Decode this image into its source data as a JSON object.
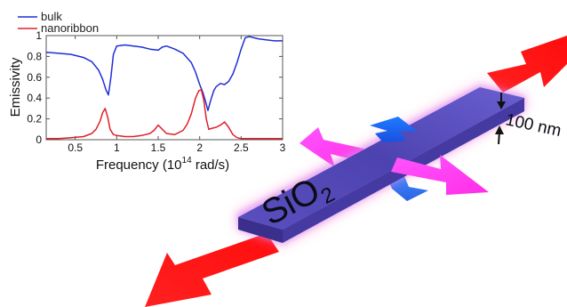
{
  "figure": {
    "material_label": "SiO",
    "material_subscript": "2",
    "thickness_label": "100 nm",
    "colors": {
      "ribbon": "#4f45b5",
      "ribbon_glow": "#ff7ad0",
      "red_arrow": "#ff1a1a",
      "magenta_arrow": "#ff3dff",
      "blue_arrow": "#1f6bff"
    }
  },
  "chart_data": {
    "type": "line",
    "xlabel": "Frequency (10",
    "xlabel_sup": "14",
    "xlabel_tail": " rad/s)",
    "ylabel": "Emissivity",
    "xlim": [
      0.15,
      3.0
    ],
    "ylim": [
      0,
      1
    ],
    "xticks": [
      0.5,
      1,
      1.5,
      2,
      2.5,
      3
    ],
    "xtick_labels": [
      "0.5",
      "1",
      "1.5",
      "2",
      "2.5",
      "3"
    ],
    "yticks": [
      0,
      0.2,
      0.4,
      0.6,
      0.8,
      1
    ],
    "ytick_labels": [
      "0",
      "0.2",
      "0.4",
      "0.6",
      "0.8",
      "1"
    ],
    "legend": "top-left",
    "series": [
      {
        "name": "bulk",
        "color": "#1f2fd6",
        "x": [
          0.15,
          0.3,
          0.45,
          0.6,
          0.7,
          0.78,
          0.83,
          0.87,
          0.9,
          0.93,
          0.96,
          1.0,
          1.1,
          1.2,
          1.3,
          1.4,
          1.5,
          1.55,
          1.6,
          1.7,
          1.8,
          1.9,
          1.95,
          2.0,
          2.04,
          2.07,
          2.1,
          2.13,
          2.17,
          2.2,
          2.25,
          2.3,
          2.35,
          2.4,
          2.45,
          2.5,
          2.55,
          2.6,
          2.7,
          2.8,
          2.9,
          3.0
        ],
        "y": [
          0.84,
          0.83,
          0.82,
          0.79,
          0.75,
          0.67,
          0.58,
          0.48,
          0.43,
          0.6,
          0.82,
          0.9,
          0.91,
          0.9,
          0.89,
          0.87,
          0.86,
          0.89,
          0.9,
          0.87,
          0.83,
          0.74,
          0.65,
          0.53,
          0.45,
          0.37,
          0.28,
          0.37,
          0.47,
          0.51,
          0.54,
          0.53,
          0.56,
          0.63,
          0.74,
          0.87,
          0.98,
          0.99,
          0.97,
          0.96,
          0.95,
          0.95
        ]
      },
      {
        "name": "nanoribbon",
        "color": "#e0202a",
        "x": [
          0.15,
          0.3,
          0.45,
          0.6,
          0.7,
          0.75,
          0.8,
          0.83,
          0.86,
          0.89,
          0.92,
          0.96,
          1.0,
          1.1,
          1.2,
          1.3,
          1.4,
          1.45,
          1.5,
          1.55,
          1.6,
          1.7,
          1.8,
          1.85,
          1.9,
          1.95,
          1.99,
          2.02,
          2.05,
          2.08,
          2.11,
          2.15,
          2.2,
          2.25,
          2.3,
          2.35,
          2.4,
          2.45,
          2.5,
          2.6,
          2.7,
          2.8,
          3.0
        ],
        "y": [
          0.01,
          0.01,
          0.02,
          0.03,
          0.06,
          0.1,
          0.18,
          0.26,
          0.3,
          0.22,
          0.1,
          0.05,
          0.04,
          0.03,
          0.03,
          0.04,
          0.06,
          0.09,
          0.14,
          0.1,
          0.06,
          0.05,
          0.09,
          0.15,
          0.25,
          0.4,
          0.47,
          0.48,
          0.38,
          0.2,
          0.1,
          0.11,
          0.12,
          0.14,
          0.17,
          0.12,
          0.05,
          0.02,
          0.01,
          0.01,
          0.01,
          0.01,
          0.01
        ]
      }
    ]
  }
}
